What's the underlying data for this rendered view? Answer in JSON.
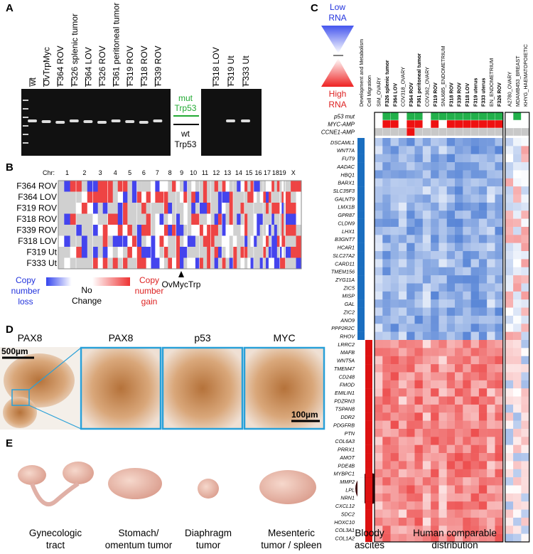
{
  "panels": {
    "a": {
      "label": "A",
      "lanes_left": [
        "wt",
        "OvTrpMyc",
        "F364 ROV",
        "F326 splenic tumor",
        "F364 LOV",
        "F326 ROV",
        "F361 peritoneal tumor",
        "F319 ROV",
        "F318 ROV",
        "F339 ROV"
      ],
      "lanes_right": [
        "F318 LOV",
        "F319 Ut",
        "F333 Ut"
      ],
      "mut": [
        "mut",
        "Trp53"
      ],
      "wt": [
        "wt",
        "Trp53"
      ]
    },
    "b": {
      "label": "B",
      "chr_label": "Chr:",
      "chromosomes": [
        "1",
        "2",
        "3",
        "4",
        "5",
        "6",
        "7",
        "8",
        "9",
        "10",
        "11",
        "12",
        "13",
        "14",
        "15",
        "16",
        "17",
        "18",
        "19",
        "X"
      ],
      "samples": [
        "F364 ROV",
        "F364 LOV",
        "F319 ROV",
        "F318 ROV",
        "F339 ROV",
        "F318 LOV",
        "F319 Ut",
        "F333 Ut"
      ],
      "marker": "OvMycTrp",
      "legend_loss": [
        "Copy",
        "number",
        "loss"
      ],
      "legend_none": [
        "No",
        "Change"
      ],
      "legend_gain": [
        "Copy",
        "number",
        "gain"
      ]
    },
    "c": {
      "label": "C",
      "low": [
        "Low",
        "RNA"
      ],
      "high": [
        "High",
        "RNA"
      ],
      "columns": [
        "Development and Metabolism",
        "Cell Migration",
        "SIM_OVARY",
        "F326 splenic tumor",
        "F364 LOV",
        "COV318_OVARY",
        "F364 ROV",
        "F361 peritoneal tumor",
        "COV362_OVARY",
        "F319 ROV",
        "SNU685_ENDOMETRIUM",
        "F318 ROV",
        "F339 ROV",
        "F318 LOV",
        "F319 uterus",
        "F333 uterus",
        "EN_ENDOMETRIUM",
        "F326 ROV",
        "A2780_OVARY",
        "MDAMB453_BREAST",
        "KHYG_HAEMATOPOIETIC"
      ],
      "mutations": [
        "p53 mut",
        "MYC-AMP",
        "CCNE1-AMP"
      ],
      "genes": [
        "DSCAML1",
        "WNT7A",
        "FUT9",
        "AADAC",
        "HBQ1",
        "BARX1",
        "SLC35F3",
        "GALNT9",
        "LMX1B",
        "GPR87",
        "CLDN9",
        "LHX1",
        "B3GNT7",
        "HCAR1",
        "SLC27A2",
        "CARD11",
        "TMEM156",
        "ZYG11A",
        "ZIC5",
        "MISP",
        "GAL",
        "ZIC2",
        "ANO9",
        "PPP2R2C",
        "RHOV",
        "LRRC2",
        "MAFB",
        "WNT5A",
        "TMEM47",
        "CD248",
        "FMOD",
        "EMILIN1",
        "PDZRN3",
        "TSPAN8",
        "DDR2",
        "PDGFRB",
        "PTN",
        "COL6A3",
        "PRRX1",
        "AMOT",
        "PDE4B",
        "MYBPC1",
        "MMP2",
        "LPL",
        "NRN1",
        "CXCL12",
        "SDC2",
        "HOXC10",
        "COL3A1",
        "COL1A2"
      ]
    },
    "d": {
      "label": "D",
      "titles": [
        "PAX8",
        "PAX8",
        "p53",
        "MYC"
      ],
      "scale_large": "500µm",
      "scale_small": "100µm"
    },
    "e": {
      "label": "E",
      "captions": [
        [
          "Gynecologic",
          "tract"
        ],
        [
          "Stomach/",
          "omentum tumor"
        ],
        [
          "Diaphragm",
          "tumor"
        ],
        [
          "Mesenteric",
          "tumor / spleen"
        ],
        [
          "Bloody",
          "ascites"
        ],
        [
          "Human comparable",
          "distribution"
        ]
      ]
    }
  }
}
